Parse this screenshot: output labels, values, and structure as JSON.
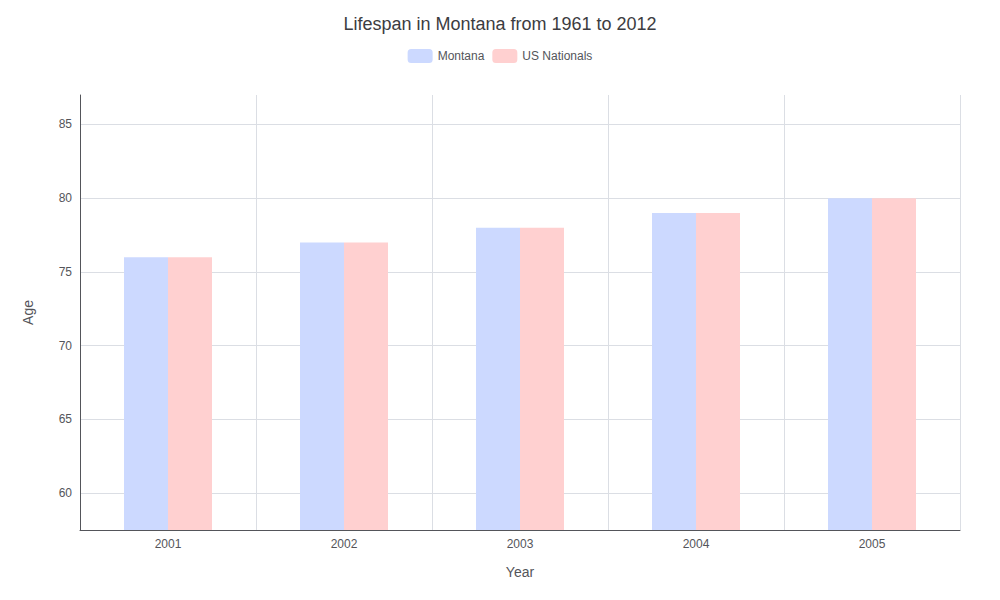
{
  "chart_data": {
    "type": "bar",
    "title": "Lifespan in Montana from 1961 to 2012",
    "xlabel": "Year",
    "ylabel": "Age",
    "categories": [
      "2001",
      "2002",
      "2003",
      "2004",
      "2005"
    ],
    "series": [
      {
        "name": "Montana",
        "color": "#ccd9ff",
        "values": [
          76,
          77,
          78,
          79,
          80
        ]
      },
      {
        "name": "US Nationals",
        "color": "#ffd0d0",
        "values": [
          76,
          77,
          78,
          79,
          80
        ]
      }
    ],
    "ylim": [
      57.5,
      87
    ],
    "yticks": [
      60,
      65,
      70,
      75,
      80,
      85
    ],
    "grid": true,
    "legend": "top"
  }
}
